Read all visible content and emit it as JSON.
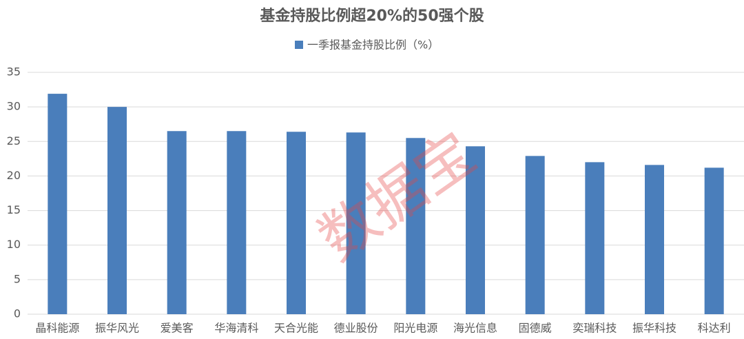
{
  "chart_data": {
    "type": "bar",
    "title": "基金持股比例超20%的50强个股",
    "categories": [
      "晶科能源",
      "振华风光",
      "爱美客",
      "华海清科",
      "天合光能",
      "德业股份",
      "阳光电源",
      "海光信息",
      "固德威",
      "奕瑞科技",
      "振华科技",
      "科达利"
    ],
    "series": [
      {
        "name": "一季报基金持股比例（%）",
        "color": "#4a7ebb",
        "values": [
          31.9,
          30.0,
          26.5,
          26.5,
          26.4,
          26.3,
          25.5,
          24.3,
          22.9,
          22.0,
          21.6,
          21.2
        ]
      }
    ],
    "ylim": [
      0,
      35
    ],
    "yticks": [
      0,
      5,
      10,
      15,
      20,
      25,
      30,
      35
    ],
    "grid": true,
    "legend": "top",
    "watermark": "数据宝"
  }
}
